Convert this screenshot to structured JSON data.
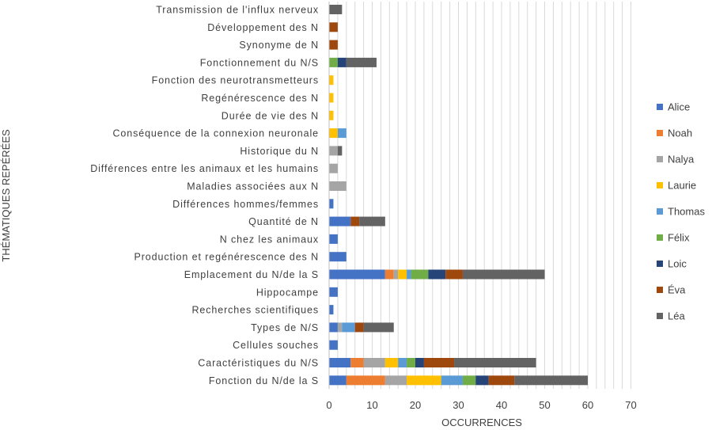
{
  "chart_data": {
    "type": "bar",
    "orientation": "horizontal",
    "stacked": true,
    "xlabel": "OCCURRENCES",
    "ylabel": "THÉMATIQUES REPÉRÉES",
    "xlim": [
      0,
      70
    ],
    "xticks": [
      "0",
      "10",
      "20",
      "30",
      "40",
      "50",
      "60",
      "70"
    ],
    "grid": true,
    "legend_position": "right",
    "categories": [
      "Transmission de l'influx nerveux",
      "Développement des N",
      "Synonyme de N",
      "Fonctionnement du N/S",
      "Fonction des neurotransmetteurs",
      "Regénérescence des N",
      "Durée de vie des N",
      "Conséquence de la connexion neuronale",
      "Historique du N",
      "Différences entre les animaux et les humains",
      "Maladies associées aux N",
      "Différences hommes/femmes",
      "Quantité de N",
      "N chez les animaux",
      "Production et regénérescence des N",
      "Emplacement du N/de la S",
      "Hippocampe",
      "Recherches scientifiques",
      "Types de N/S",
      "Cellules souches",
      "Caractéristiques du N/S",
      "Fonction du N/de la S"
    ],
    "series": [
      {
        "name": "Alice",
        "color": "#4472C4",
        "values": [
          0,
          0,
          0,
          0,
          0,
          0,
          0,
          0,
          0,
          0,
          0,
          1,
          5,
          2,
          4,
          13,
          2,
          1,
          2,
          2,
          5,
          4
        ]
      },
      {
        "name": "Noah",
        "color": "#ED7D31",
        "values": [
          0,
          0,
          0,
          0,
          0,
          0,
          0,
          0,
          0,
          0,
          0,
          0,
          0,
          0,
          0,
          2,
          0,
          0,
          0,
          0,
          3,
          9
        ]
      },
      {
        "name": "Nalya",
        "color": "#A5A5A5",
        "values": [
          0,
          0,
          0,
          0,
          0,
          0,
          0,
          0,
          2,
          2,
          4,
          0,
          0,
          0,
          0,
          1,
          0,
          0,
          1,
          0,
          5,
          5
        ]
      },
      {
        "name": "Laurie",
        "color": "#FFC000",
        "values": [
          0,
          0,
          0,
          0,
          1,
          1,
          1,
          2,
          0,
          0,
          0,
          0,
          0,
          0,
          0,
          2,
          0,
          0,
          0,
          0,
          3,
          8
        ]
      },
      {
        "name": "Thomas",
        "color": "#5B9BD5",
        "values": [
          0,
          0,
          0,
          0,
          0,
          0,
          0,
          2,
          0,
          0,
          0,
          0,
          0,
          0,
          0,
          1,
          0,
          0,
          3,
          0,
          2,
          5
        ]
      },
      {
        "name": "Félix",
        "color": "#70AD47",
        "values": [
          0,
          0,
          0,
          2,
          0,
          0,
          0,
          0,
          0,
          0,
          0,
          0,
          0,
          0,
          0,
          4,
          0,
          0,
          0,
          0,
          2,
          3
        ]
      },
      {
        "name": "Loic",
        "color": "#264478",
        "values": [
          0,
          0,
          0,
          2,
          0,
          0,
          0,
          0,
          0,
          0,
          0,
          0,
          0,
          0,
          0,
          4,
          0,
          0,
          0,
          0,
          2,
          3
        ]
      },
      {
        "name": "Éva",
        "color": "#9E480E",
        "values": [
          0,
          2,
          2,
          0,
          0,
          0,
          0,
          0,
          0,
          0,
          0,
          0,
          2,
          0,
          0,
          4,
          0,
          0,
          2,
          0,
          7,
          6
        ]
      },
      {
        "name": "Léa",
        "color": "#636363",
        "values": [
          3,
          0,
          0,
          7,
          0,
          0,
          0,
          0,
          1,
          0,
          0,
          0,
          6,
          0,
          0,
          19,
          0,
          0,
          7,
          0,
          19,
          17
        ]
      }
    ]
  }
}
